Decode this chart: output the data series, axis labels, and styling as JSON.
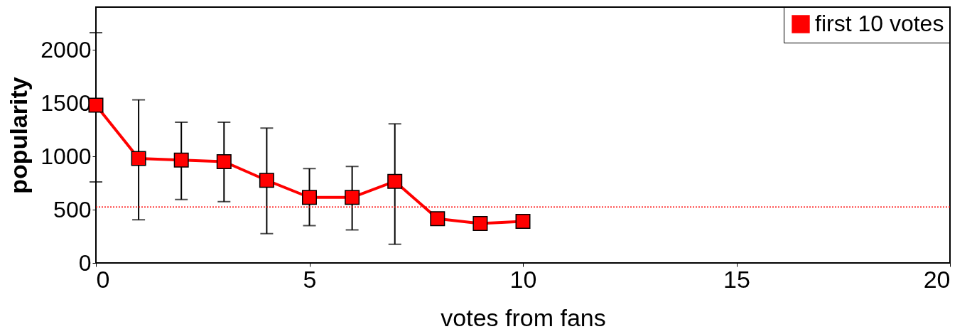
{
  "chart_data": {
    "type": "line",
    "xlabel": "votes from fans",
    "ylabel": "popularity",
    "x": [
      0,
      1,
      2,
      3,
      4,
      5,
      6,
      7,
      8,
      9,
      10
    ],
    "series": [
      {
        "name": "first 10 votes",
        "color": "#ff0000",
        "values": [
          1480,
          980,
          965,
          950,
          775,
          615,
          615,
          765,
          415,
          370,
          390
        ],
        "errors": [
          [
            760,
            2160
          ],
          [
            405,
            1530
          ],
          [
            595,
            1320
          ],
          [
            575,
            1320
          ],
          [
            275,
            1265
          ],
          [
            350,
            885
          ],
          [
            310,
            905
          ],
          [
            175,
            1305
          ],
          null,
          null,
          null
        ]
      }
    ],
    "xlim": [
      0,
      20
    ],
    "xticks": [
      0,
      5,
      10,
      15,
      20
    ],
    "ylim": [
      0,
      2400
    ],
    "yticks": [
      0,
      500,
      1000,
      1500,
      2000
    ],
    "ref_lines": [
      {
        "axis": "y",
        "value": 525,
        "color": "#ff0000",
        "line_style": "dotted"
      }
    ],
    "marker": "square",
    "line_style": "solid",
    "grid": false,
    "legend": "top right"
  }
}
